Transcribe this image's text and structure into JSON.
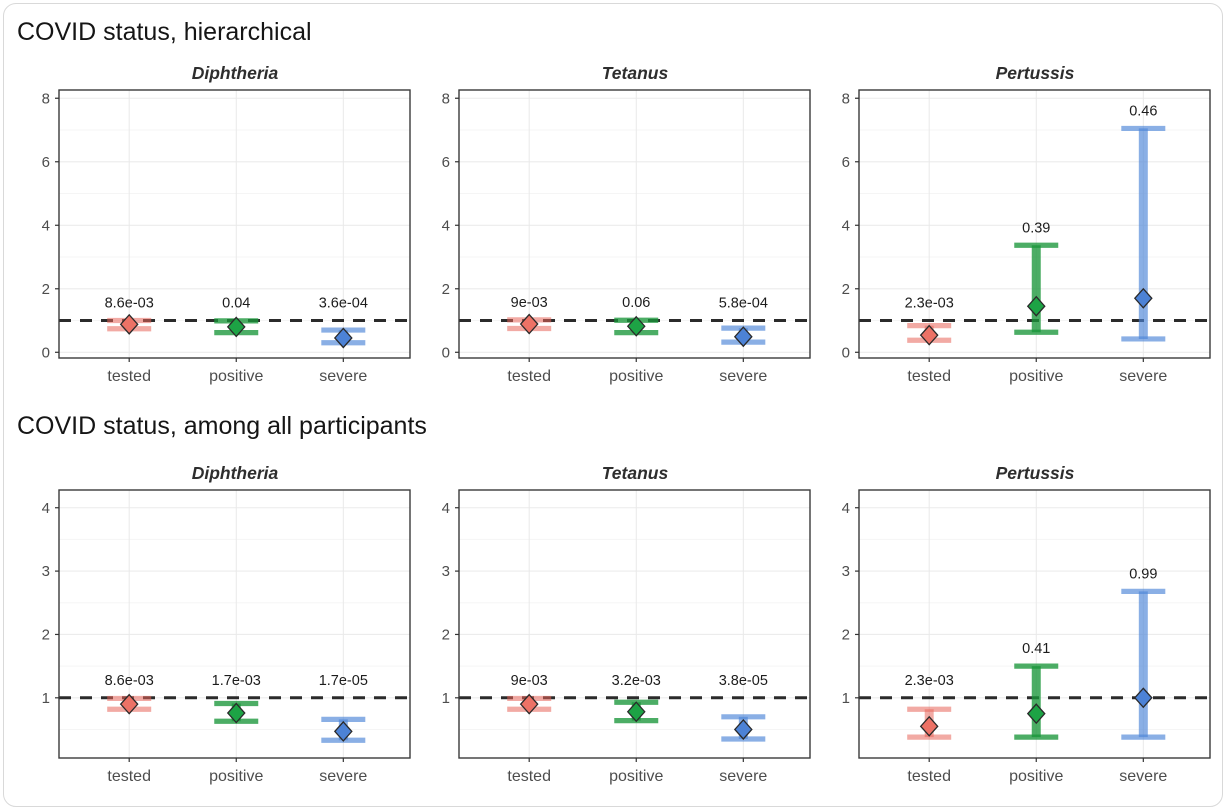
{
  "chart_data": [
    {
      "type": "scatter",
      "title": "COVID status, hierarchical",
      "ylabel": "",
      "xlabel": "",
      "categories": [
        "tested",
        "positive",
        "severe"
      ],
      "ylim": [
        -0.18,
        8.26
      ],
      "yticks": [
        0,
        2,
        4,
        6,
        8
      ],
      "yticks_minor": [
        1,
        3,
        5,
        7
      ],
      "ref_line": 1,
      "grid": true,
      "legend": "none",
      "facets": [
        {
          "title": "Diphtheria",
          "series": [
            {
              "name": "tested",
              "est": 0.88,
              "ci_lo": 0.74,
              "ci_hi": 1.0,
              "p_label": "8.6e-03"
            },
            {
              "name": "positive",
              "est": 0.8,
              "ci_lo": 0.62,
              "ci_hi": 0.99,
              "p_label": "0.04"
            },
            {
              "name": "severe",
              "est": 0.45,
              "ci_lo": 0.3,
              "ci_hi": 0.7,
              "p_label": "3.6e-04"
            }
          ]
        },
        {
          "title": "Tetanus",
          "series": [
            {
              "name": "tested",
              "est": 0.89,
              "ci_lo": 0.75,
              "ci_hi": 1.02,
              "p_label": "9e-03"
            },
            {
              "name": "positive",
              "est": 0.82,
              "ci_lo": 0.62,
              "ci_hi": 1.01,
              "p_label": "0.06"
            },
            {
              "name": "severe",
              "est": 0.49,
              "ci_lo": 0.32,
              "ci_hi": 0.76,
              "p_label": "5.8e-04"
            }
          ]
        },
        {
          "title": "Pertussis",
          "series": [
            {
              "name": "tested",
              "est": 0.54,
              "ci_lo": 0.38,
              "ci_hi": 0.84,
              "p_label": "2.3e-03"
            },
            {
              "name": "positive",
              "est": 1.45,
              "ci_lo": 0.63,
              "ci_hi": 3.37,
              "p_label": "0.39"
            },
            {
              "name": "severe",
              "est": 1.7,
              "ci_lo": 0.42,
              "ci_hi": 7.05,
              "p_label": "0.46"
            }
          ]
        }
      ]
    },
    {
      "type": "scatter",
      "title": "COVID status, among all participants",
      "ylabel": "",
      "xlabel": "",
      "categories": [
        "tested",
        "positive",
        "severe"
      ],
      "ylim": [
        0.05,
        4.28
      ],
      "yticks": [
        1,
        2,
        3,
        4
      ],
      "yticks_minor": [
        0.5,
        1.5,
        2.5,
        3.5
      ],
      "ref_line": 1,
      "grid": true,
      "legend": "none",
      "facets": [
        {
          "title": "Diphtheria",
          "series": [
            {
              "name": "tested",
              "est": 0.9,
              "ci_lo": 0.82,
              "ci_hi": 0.99,
              "p_label": "8.6e-03"
            },
            {
              "name": "positive",
              "est": 0.76,
              "ci_lo": 0.63,
              "ci_hi": 0.91,
              "p_label": "1.7e-03"
            },
            {
              "name": "severe",
              "est": 0.47,
              "ci_lo": 0.33,
              "ci_hi": 0.66,
              "p_label": "1.7e-05"
            }
          ]
        },
        {
          "title": "Tetanus",
          "series": [
            {
              "name": "tested",
              "est": 0.9,
              "ci_lo": 0.82,
              "ci_hi": 0.99,
              "p_label": "9e-03"
            },
            {
              "name": "positive",
              "est": 0.78,
              "ci_lo": 0.64,
              "ci_hi": 0.93,
              "p_label": "3.2e-03"
            },
            {
              "name": "severe",
              "est": 0.5,
              "ci_lo": 0.35,
              "ci_hi": 0.7,
              "p_label": "3.8e-05"
            }
          ]
        },
        {
          "title": "Pertussis",
          "series": [
            {
              "name": "tested",
              "est": 0.55,
              "ci_lo": 0.38,
              "ci_hi": 0.82,
              "p_label": "2.3e-03"
            },
            {
              "name": "positive",
              "est": 0.75,
              "ci_lo": 0.38,
              "ci_hi": 1.5,
              "p_label": "0.41"
            },
            {
              "name": "severe",
              "est": 1.0,
              "ci_lo": 0.38,
              "ci_hi": 2.68,
              "p_label": "0.99"
            }
          ]
        }
      ]
    }
  ],
  "style": {
    "groups": {
      "tested": {
        "marker": "#ec7266",
        "bar": "rgba(232,100,90,0.55)"
      },
      "positive": {
        "marker": "#1da345",
        "bar": "rgba(25,150,58,0.78)"
      },
      "severe": {
        "marker": "#4c82d6",
        "bar": "rgba(77,134,216,0.66)"
      }
    },
    "marker_outline": "#2a2a2a",
    "ref_line_color": "#2b2b2b",
    "grid_major": "#ececec",
    "grid_minor": "#f5f5f5",
    "grid_vertical": "#e9e9e9",
    "panel_border": "#3a3a3a",
    "tick_color": "#333333",
    "tick_label_color": "#4d4d4d",
    "p_label_color": "#1c1c1c",
    "card_border": "#d9d9d9"
  }
}
